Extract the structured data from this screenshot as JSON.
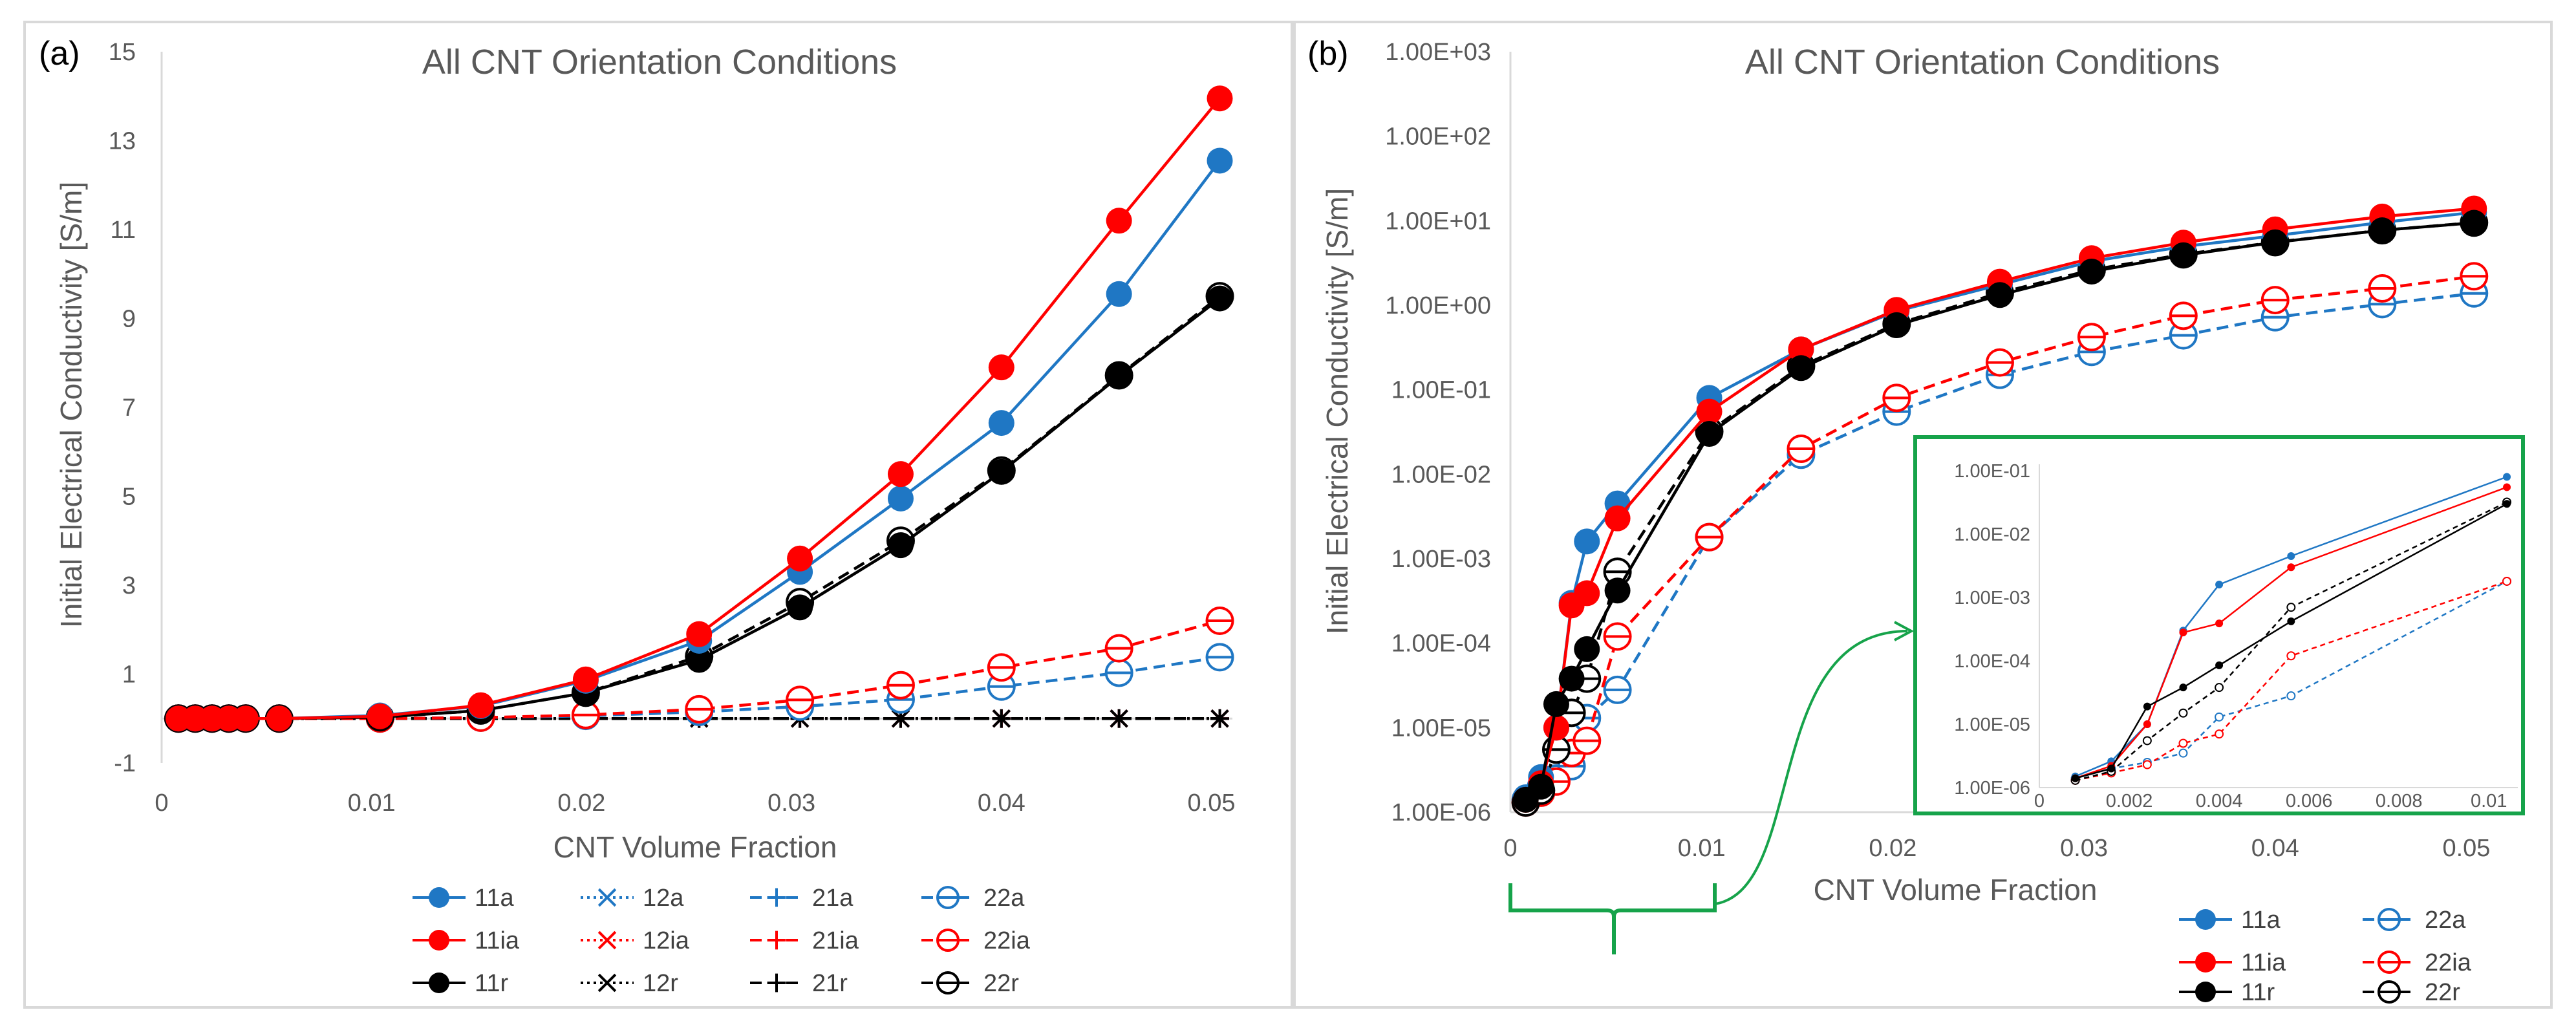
{
  "chart_data": [
    {
      "type": "line",
      "panel_label": "(a)",
      "title": "All CNT Orientation Conditions",
      "xlabel": "CNT Volume Fraction",
      "ylabel": "Initial Electrical Conductivity [S/m]",
      "xlim": [
        0,
        0.051
      ],
      "ylim": [
        -1,
        15
      ],
      "xticks": [
        0,
        0.01,
        0.02,
        0.03,
        0.04,
        0.05
      ],
      "xtick_labels": [
        "0",
        "0.01",
        "0.02",
        "0.03",
        "0.04",
        "0.05"
      ],
      "yticks": [
        -1,
        1,
        3,
        5,
        7,
        9,
        11,
        13,
        15
      ],
      "ytick_labels": [
        "-1",
        "1",
        "3",
        "5",
        "7",
        "9",
        "11",
        "13",
        "15"
      ],
      "x": [
        0.0008,
        0.0016,
        0.0024,
        0.0032,
        0.004,
        0.0056,
        0.0104,
        0.0152,
        0.0202,
        0.0256,
        0.0304,
        0.0352,
        0.04,
        0.0456,
        0.0504
      ],
      "series": [
        {
          "name": "11a",
          "color": "#1f77c4",
          "dash": "solid",
          "marker": "dot",
          "values": [
            0,
            0,
            0,
            0,
            0,
            0,
            0.07,
            0.28,
            0.85,
            1.75,
            3.3,
            4.95,
            6.65,
            9.55,
            12.55
          ]
        },
        {
          "name": "12a",
          "color": "#1f77c4",
          "dash": "dot",
          "marker": "x",
          "values": [
            0,
            0,
            0,
            0,
            0,
            0,
            0,
            0,
            0,
            0,
            0,
            0,
            0,
            0,
            0
          ]
        },
        {
          "name": "21a",
          "color": "#1f77c4",
          "dash": "dash",
          "marker": "plus",
          "values": [
            0,
            0,
            0,
            0,
            0,
            0,
            0,
            0,
            0,
            0,
            0,
            0,
            0,
            0,
            0
          ]
        },
        {
          "name": "22a",
          "color": "#1f77c4",
          "dash": "dash",
          "marker": "theta",
          "values": [
            0,
            0,
            0,
            0,
            0,
            0,
            0,
            0.02,
            0.06,
            0.15,
            0.27,
            0.43,
            0.72,
            1.03,
            1.38
          ]
        },
        {
          "name": "11ia",
          "color": "#ff0000",
          "dash": "solid",
          "marker": "dot",
          "values": [
            0,
            0,
            0,
            0,
            0,
            0,
            0.05,
            0.3,
            0.88,
            1.9,
            3.6,
            5.5,
            7.9,
            11.2,
            13.95
          ]
        },
        {
          "name": "12ia",
          "color": "#ff0000",
          "dash": "dot",
          "marker": "x",
          "values": [
            0,
            0,
            0,
            0,
            0,
            0,
            0,
            0,
            0,
            0,
            0,
            0,
            0,
            0,
            0
          ]
        },
        {
          "name": "21ia",
          "color": "#ff0000",
          "dash": "dash",
          "marker": "plus",
          "values": [
            0,
            0,
            0,
            0,
            0,
            0,
            0,
            0,
            0,
            0,
            0,
            0,
            0,
            0,
            0
          ]
        },
        {
          "name": "22ia",
          "color": "#ff0000",
          "dash": "dash",
          "marker": "theta",
          "values": [
            0,
            0,
            0,
            0,
            0,
            0,
            0,
            0.02,
            0.08,
            0.21,
            0.42,
            0.75,
            1.15,
            1.58,
            2.2
          ]
        },
        {
          "name": "11r",
          "color": "#000000",
          "dash": "solid",
          "marker": "dot",
          "values": [
            0,
            0,
            0,
            0,
            0,
            0,
            0.03,
            0.18,
            0.58,
            1.32,
            2.5,
            3.9,
            5.55,
            7.7,
            9.45
          ]
        },
        {
          "name": "12r",
          "color": "#000000",
          "dash": "dot",
          "marker": "x",
          "values": [
            0,
            0,
            0,
            0,
            0,
            0,
            0,
            0,
            0,
            0,
            0,
            0,
            0,
            0,
            0
          ]
        },
        {
          "name": "21r",
          "color": "#000000",
          "dash": "dash",
          "marker": "plus",
          "values": [
            0,
            0,
            0,
            0,
            0,
            0,
            0,
            0,
            0,
            0,
            0,
            0,
            0,
            0,
            0
          ]
        },
        {
          "name": "22r",
          "color": "#000000",
          "dash": "dash",
          "marker": "theta",
          "values": [
            0,
            0,
            0,
            0,
            0,
            0,
            0.03,
            0.18,
            0.58,
            1.4,
            2.62,
            4.0,
            5.58,
            7.72,
            9.5
          ]
        }
      ]
    },
    {
      "type": "line",
      "panel_label": "(b)",
      "title": "All CNT Orientation Conditions",
      "xlabel": "CNT Volume Fraction",
      "ylabel": "Initial Electrical Conductivity [S/m]",
      "yscale": "log",
      "xlim": [
        0,
        0.051
      ],
      "ylim": [
        1e-06,
        1000
      ],
      "xticks": [
        0,
        0.01,
        0.02,
        0.03,
        0.04,
        0.05
      ],
      "xtick_labels": [
        "0",
        "0.01",
        "0.02",
        "0.03",
        "0.04",
        "0.05"
      ],
      "ytick_labels": [
        "1.00E-06",
        "1.00E-05",
        "1.00E-04",
        "1.00E-03",
        "1.00E-02",
        "1.00E-01",
        "1.00E+00",
        "1.00E+01",
        "1.00E+02",
        "1.00E+03"
      ],
      "x": [
        0.0008,
        0.0016,
        0.0024,
        0.0032,
        0.004,
        0.0056,
        0.0104,
        0.0152,
        0.0202,
        0.0256,
        0.0304,
        0.0352,
        0.04,
        0.0456,
        0.0504
      ],
      "series": [
        {
          "name": "11a",
          "color": "#1f77c4",
          "dash": "solid",
          "marker": "dot",
          "values": [
            1.5e-06,
            2.6e-06,
            1e-05,
            0.0003,
            0.0016,
            0.0045,
            0.08,
            0.3,
            0.85,
            1.75,
            3.3,
            4.95,
            6.65,
            9.55,
            12.55
          ]
        },
        {
          "name": "22a",
          "color": "#1f77c4",
          "dash": "dash",
          "marker": "theta",
          "values": [
            1.4e-06,
            2e-06,
            2.5e-06,
            3.5e-06,
            1.3e-05,
            2.8e-05,
            0.0018,
            0.017,
            0.055,
            0.15,
            0.28,
            0.44,
            0.72,
            1.03,
            1.38
          ]
        },
        {
          "name": "11ia",
          "color": "#ff0000",
          "dash": "solid",
          "marker": "dot",
          "values": [
            1.4e-06,
            2.2e-06,
            1e-05,
            0.00028,
            0.00039,
            0.003,
            0.055,
            0.3,
            0.88,
            1.9,
            3.6,
            5.5,
            7.9,
            11.2,
            13.95
          ]
        },
        {
          "name": "22ia",
          "color": "#ff0000",
          "dash": "dash",
          "marker": "theta",
          "values": [
            1.3e-06,
            1.7e-06,
            2.3e-06,
            5e-06,
            7e-06,
            0.00012,
            0.0018,
            0.02,
            0.08,
            0.21,
            0.42,
            0.75,
            1.15,
            1.58,
            2.2
          ]
        },
        {
          "name": "11r",
          "color": "#000000",
          "dash": "solid",
          "marker": "dot",
          "values": [
            1.4e-06,
            2e-06,
            1.9e-05,
            3.8e-05,
            8.5e-05,
            0.00042,
            0.03,
            0.18,
            0.58,
            1.32,
            2.5,
            3.9,
            5.55,
            7.7,
            9.45
          ]
        },
        {
          "name": "22r",
          "color": "#000000",
          "dash": "dash",
          "marker": "theta",
          "values": [
            1.3e-06,
            1.8e-06,
            5.5e-06,
            1.5e-05,
            3.8e-05,
            0.0007,
            0.032,
            0.19,
            0.6,
            1.4,
            2.62,
            4.0,
            5.58,
            7.72,
            9.5
          ]
        }
      ],
      "inset": {
        "xlim": [
          0,
          0.0105
        ],
        "ylim": [
          1e-06,
          0.1
        ],
        "xticks": [
          0,
          0.002,
          0.004,
          0.006,
          0.008,
          0.01
        ],
        "xtick_labels": [
          "0",
          "0.002",
          "0.004",
          "0.006",
          "0.008",
          "0.01"
        ],
        "ytick_labels": [
          "1.00E-06",
          "1.00E-05",
          "1.00E-04",
          "1.00E-03",
          "1.00E-02",
          "1.00E-01"
        ]
      }
    }
  ]
}
